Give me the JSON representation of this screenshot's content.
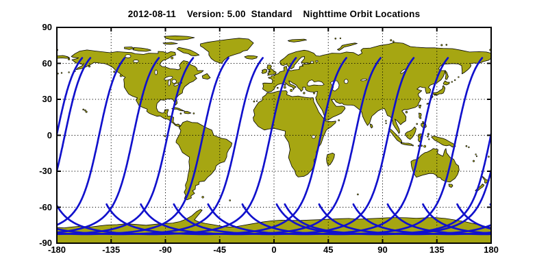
{
  "header": {
    "title": "2012-08-11    Version: 5.00  Standard    Nighttime Orbit Locations"
  },
  "chart_data": {
    "type": "line",
    "title": "2012-08-11    Version: 5.00  Standard    Nighttime Orbit Locations",
    "date": "2012-08-11",
    "version": "5.00",
    "processing": "Standard",
    "description": "Nighttime Orbit Locations",
    "projection": "equirectangular world map",
    "xlabel": "",
    "ylabel": "",
    "xlim": [
      -180,
      180
    ],
    "ylim": [
      -90,
      90
    ],
    "xticks": [
      -180,
      -135,
      -90,
      -45,
      0,
      45,
      90,
      135,
      180
    ],
    "yticks": [
      90,
      60,
      30,
      0,
      -30,
      -60,
      -90
    ],
    "xtick_labels": [
      "-180",
      "-135",
      "-90",
      "-45",
      "0",
      "45",
      "90",
      "135",
      "180"
    ],
    "ytick_labels": [
      "90",
      "60",
      "30",
      "0",
      "-30",
      "-60",
      "-90"
    ],
    "grid": "dotted, 30 deg latitude x 45 deg longitude",
    "legend": "none",
    "series": [
      {
        "name": "nighttime orbit ground tracks",
        "count": 13,
        "equator_crossing_lons_deg": [
          -173.4,
          -145.0,
          -116.6,
          -88.2,
          -58.9,
          -30.5,
          -3.0,
          38.8,
          67.2,
          94.6,
          123.0,
          151.4,
          179.8
        ],
        "inclination_deg": 97.5,
        "north_cutoff_lat_deg": 64.5,
        "south_turn_lat_deg": -82,
        "south_exit_lat_deg": -57,
        "westward_node_spacing_deg": 28.3
      }
    ],
    "colors": {
      "ocean": "#FFFFFF",
      "land": "#A6A612",
      "coastline": "#000000",
      "track": "#1111CC",
      "grid": "#000000",
      "frame": "#000000",
      "text": "#000000"
    }
  }
}
